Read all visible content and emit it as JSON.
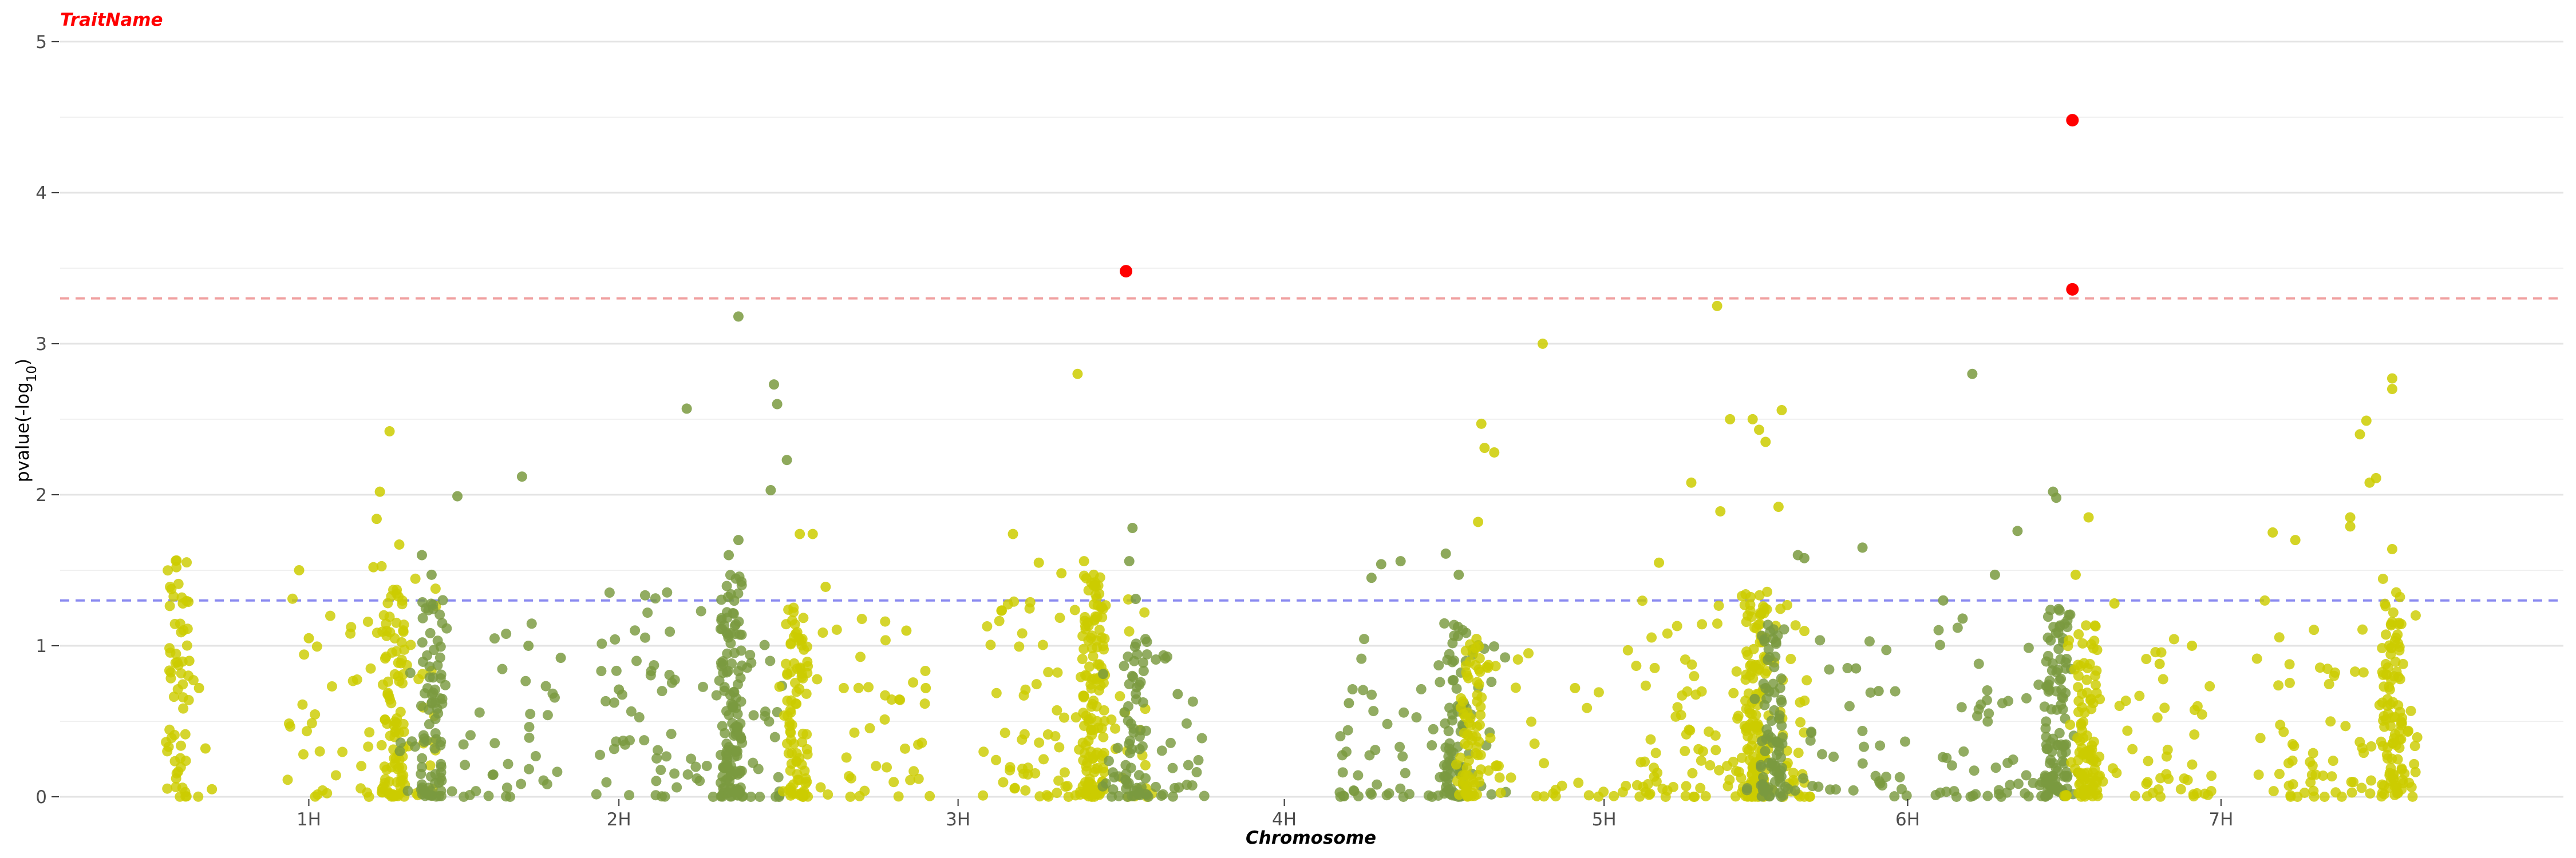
{
  "chart_data": {
    "type": "scatter",
    "title": "TraitName",
    "xlabel": "Chromosome",
    "ylabel_main": "pvalue(-log",
    "ylabel_sub": "10",
    "ylabel_end": ")",
    "ylim": [
      0,
      5.2
    ],
    "xlim": [
      0,
      7.75
    ],
    "yticks": [
      0,
      1,
      2,
      3,
      4,
      5
    ],
    "xticks": [
      {
        "label": "1H",
        "pos": 0.77
      },
      {
        "label": "2H",
        "pos": 1.73
      },
      {
        "label": "3H",
        "pos": 2.78
      },
      {
        "label": "4H",
        "pos": 3.79
      },
      {
        "label": "5H",
        "pos": 4.78
      },
      {
        "label": "6H",
        "pos": 5.72
      },
      {
        "label": "7H",
        "pos": 6.69
      }
    ],
    "thresholds": [
      {
        "name": "suggestive",
        "value": 1.3,
        "color": "#8a8af0"
      },
      {
        "name": "significant",
        "value": 3.3,
        "color": "#f0a0a0"
      }
    ],
    "colors": {
      "light": "#cccc00",
      "dark": "#7a9a40",
      "significant": "#ff0000",
      "title": "#ff0000"
    },
    "grid": true,
    "legend": "none",
    "significant_points": [
      {
        "x": 3.3,
        "y": 3.48
      },
      {
        "x": 6.23,
        "y": 4.48
      },
      {
        "x": 6.23,
        "y": 3.36
      }
    ],
    "chromosomes": [
      {
        "name": "1H",
        "segments": [
          {
            "color": "light",
            "range": [
              0.33,
              0.43
            ],
            "center": 0.36,
            "n": 60,
            "max": 1.5,
            "hits": [
              [
                0.36,
                1.52
              ],
              [
                0.38,
                1.28
              ],
              [
                0.4,
                0.9
              ],
              [
                0.43,
                0.72
              ],
              [
                0.45,
                0.32
              ],
              [
                0.47,
                0.05
              ]
            ]
          },
          {
            "color": "light",
            "range": [
              0.7,
              1.18
            ],
            "center": 1.03,
            "n": 150,
            "max": 1.5,
            "hits": [
              [
                0.74,
                1.5
              ],
              [
                0.77,
                1.05
              ],
              [
                1.02,
                2.42
              ],
              [
                0.99,
                2.02
              ],
              [
                0.98,
                1.84
              ],
              [
                1.05,
                1.67
              ],
              [
                0.97,
                1.52
              ]
            ]
          },
          {
            "color": "dark",
            "range": [
              1.05,
              1.55
            ],
            "center": 1.15,
            "n": 120,
            "max": 1.3,
            "hits": [
              [
                1.23,
                1.99
              ],
              [
                1.43,
                2.12
              ],
              [
                1.12,
                1.6
              ],
              [
                1.15,
                1.47
              ],
              [
                1.45,
                1.0
              ],
              [
                1.55,
                0.92
              ]
            ]
          }
        ]
      },
      {
        "name": "2H",
        "segments": [
          {
            "color": "dark",
            "range": [
              1.65,
              2.25
            ],
            "center": 2.08,
            "n": 210,
            "max": 1.4,
            "hits": [
              [
                1.94,
                2.57
              ],
              [
                2.1,
                3.18
              ],
              [
                2.21,
                2.73
              ],
              [
                2.22,
                2.6
              ],
              [
                2.25,
                2.23
              ],
              [
                2.2,
                2.03
              ],
              [
                2.1,
                1.7
              ],
              [
                2.07,
                1.6
              ],
              [
                1.73,
                0.71
              ]
            ]
          },
          {
            "color": "light",
            "range": [
              2.22,
              2.7
            ],
            "center": 2.28,
            "n": 130,
            "max": 1.2,
            "hits": [
              [
                2.29,
                1.74
              ],
              [
                2.33,
                1.74
              ],
              [
                2.37,
                1.39
              ],
              [
                2.62,
                1.1
              ],
              [
                2.68,
                0.72
              ]
            ]
          }
        ]
      },
      {
        "name": "3H",
        "segments": [
          {
            "color": "light",
            "range": [
              2.85,
              3.38
            ],
            "center": 3.2,
            "n": 220,
            "max": 1.4,
            "hits": [
              [
                2.95,
                1.74
              ],
              [
                3.15,
                2.8
              ],
              [
                3.03,
                1.55
              ],
              [
                3.1,
                1.48
              ],
              [
                3.2,
                1.47
              ],
              [
                3.17,
                1.56
              ]
            ]
          },
          {
            "color": "dark",
            "range": [
              3.22,
              3.55
            ],
            "center": 3.33,
            "n": 90,
            "max": 1.0,
            "hits": [
              [
                3.32,
                1.78
              ],
              [
                3.31,
                1.56
              ],
              [
                3.33,
                1.31
              ],
              [
                3.46,
                0.68
              ]
            ]
          }
        ]
      },
      {
        "name": "4H",
        "segments": [
          {
            "color": "dark",
            "range": [
              3.95,
              4.48
            ],
            "center": 4.32,
            "n": 130,
            "max": 1.1,
            "hits": [
              [
                4.06,
                1.45
              ],
              [
                4.09,
                1.54
              ],
              [
                4.15,
                1.56
              ],
              [
                4.29,
                1.61
              ],
              [
                4.33,
                1.47
              ],
              [
                3.99,
                0.62
              ]
            ]
          },
          {
            "color": "light",
            "range": [
              4.32,
              4.88
            ],
            "center": 4.37,
            "n": 110,
            "max": 1.0,
            "hits": [
              [
                4.4,
                2.47
              ],
              [
                4.41,
                2.31
              ],
              [
                4.44,
                2.28
              ],
              [
                4.39,
                1.82
              ],
              [
                4.59,
                3.0
              ],
              [
                4.69,
                0.72
              ]
            ]
          }
        ]
      },
      {
        "name": "5H",
        "segments": [
          {
            "color": "light",
            "range": [
              4.88,
              5.42
            ],
            "center": 5.25,
            "n": 260,
            "max": 1.3,
            "hits": [
              [
                5.05,
                2.08
              ],
              [
                5.13,
                3.25
              ],
              [
                5.17,
                2.5
              ],
              [
                5.24,
                2.5
              ],
              [
                5.26,
                2.43
              ],
              [
                5.28,
                2.35
              ],
              [
                5.33,
                2.56
              ],
              [
                5.14,
                1.89
              ],
              [
                5.32,
                1.92
              ],
              [
                4.95,
                1.55
              ]
            ]
          },
          {
            "color": "dark",
            "range": [
              5.22,
              5.72
            ],
            "center": 5.3,
            "n": 120,
            "max": 1.1,
            "hits": [
              [
                5.4,
                1.58
              ],
              [
                5.58,
                1.65
              ],
              [
                5.38,
                1.6
              ],
              [
                5.56,
                0.85
              ],
              [
                5.63,
                0.7
              ]
            ]
          }
        ]
      },
      {
        "name": "6H",
        "segments": [
          {
            "color": "dark",
            "range": [
              5.8,
              6.25
            ],
            "center": 6.18,
            "n": 160,
            "max": 1.2,
            "hits": [
              [
                5.92,
                2.8
              ],
              [
                6.17,
                2.02
              ],
              [
                6.18,
                1.98
              ],
              [
                6.06,
                1.76
              ],
              [
                5.99,
                1.47
              ],
              [
                5.83,
                1.3
              ],
              [
                5.89,
                1.18
              ]
            ]
          },
          {
            "color": "light",
            "range": [
              6.2,
              6.68
            ],
            "center": 6.28,
            "n": 150,
            "max": 1.1,
            "hits": [
              [
                6.28,
                1.85
              ],
              [
                6.24,
                1.47
              ],
              [
                6.36,
                1.28
              ],
              [
                6.5,
                0.88
              ],
              [
                6.6,
                1.0
              ]
            ]
          }
        ]
      },
      {
        "name": "7H",
        "segments": [
          {
            "color": "light",
            "range": [
              6.8,
              7.3
            ],
            "center": 7.22,
            "n": 170,
            "max": 1.4,
            "hits": [
              [
                7.22,
                2.77
              ],
              [
                7.22,
                2.7
              ],
              [
                7.14,
                2.49
              ],
              [
                7.12,
                2.4
              ],
              [
                7.17,
                2.11
              ],
              [
                7.15,
                2.08
              ],
              [
                7.09,
                1.85
              ],
              [
                7.09,
                1.79
              ],
              [
                6.85,
                1.75
              ],
              [
                6.92,
                1.7
              ],
              [
                7.22,
                1.64
              ]
            ]
          }
        ]
      }
    ]
  }
}
